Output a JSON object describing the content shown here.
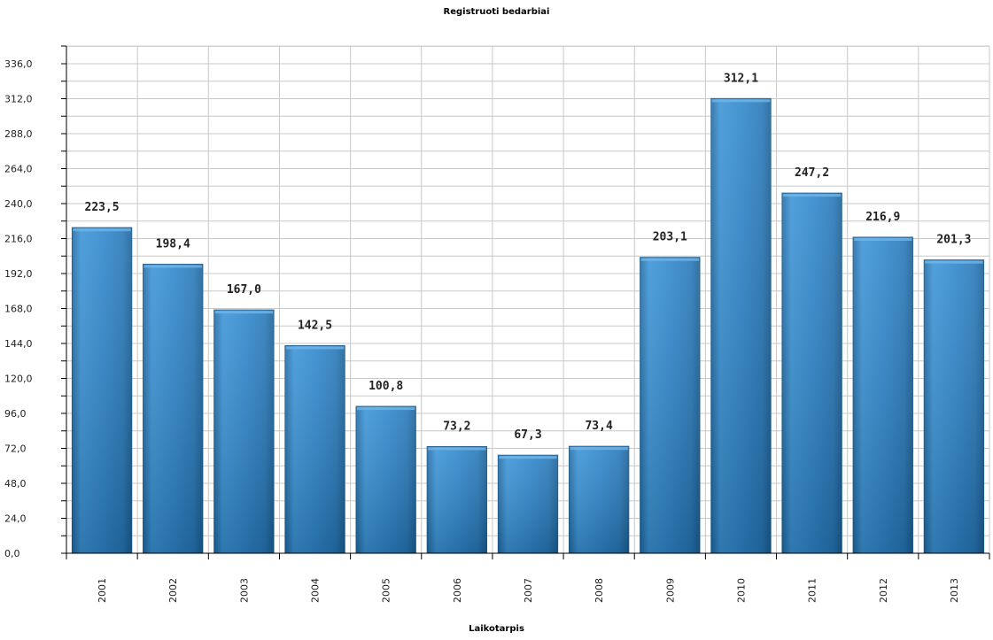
{
  "chart_data": {
    "type": "bar",
    "title": "Registruoti bedarbiai",
    "xlabel": "Laikotarpis",
    "ylabel": "",
    "categories": [
      "2001",
      "2002",
      "2003",
      "2004",
      "2005",
      "2006",
      "2007",
      "2008",
      "2009",
      "2010",
      "2011",
      "2012",
      "2013"
    ],
    "values": [
      223.5,
      198.4,
      167.0,
      142.5,
      100.8,
      73.2,
      67.3,
      73.4,
      203.1,
      312.1,
      247.2,
      216.9,
      201.3
    ],
    "value_labels": [
      "223,5",
      "198,4",
      "167,0",
      "142,5",
      "100,8",
      "73,2",
      "67,3",
      "73,4",
      "203,1",
      "312,1",
      "247,2",
      "216,9",
      "201,3"
    ],
    "y_ticks": [
      0,
      24,
      48,
      72,
      96,
      120,
      144,
      168,
      192,
      216,
      240,
      264,
      288,
      312,
      336
    ],
    "y_tick_labels": [
      "0,0",
      "24,0",
      "48,0",
      "72,0",
      "96,0",
      "120,0",
      "144,0",
      "168,0",
      "192,0",
      "216,0",
      "240,0",
      "264,0",
      "288,0",
      "312,0",
      "336,0"
    ],
    "ylim": [
      0,
      336
    ],
    "grid": true,
    "legend": "none",
    "colors": {
      "bar": "#2f86c8",
      "bar_dark": "#1d5f93",
      "grid": "#c8c8c8",
      "axis": "#000000"
    }
  }
}
